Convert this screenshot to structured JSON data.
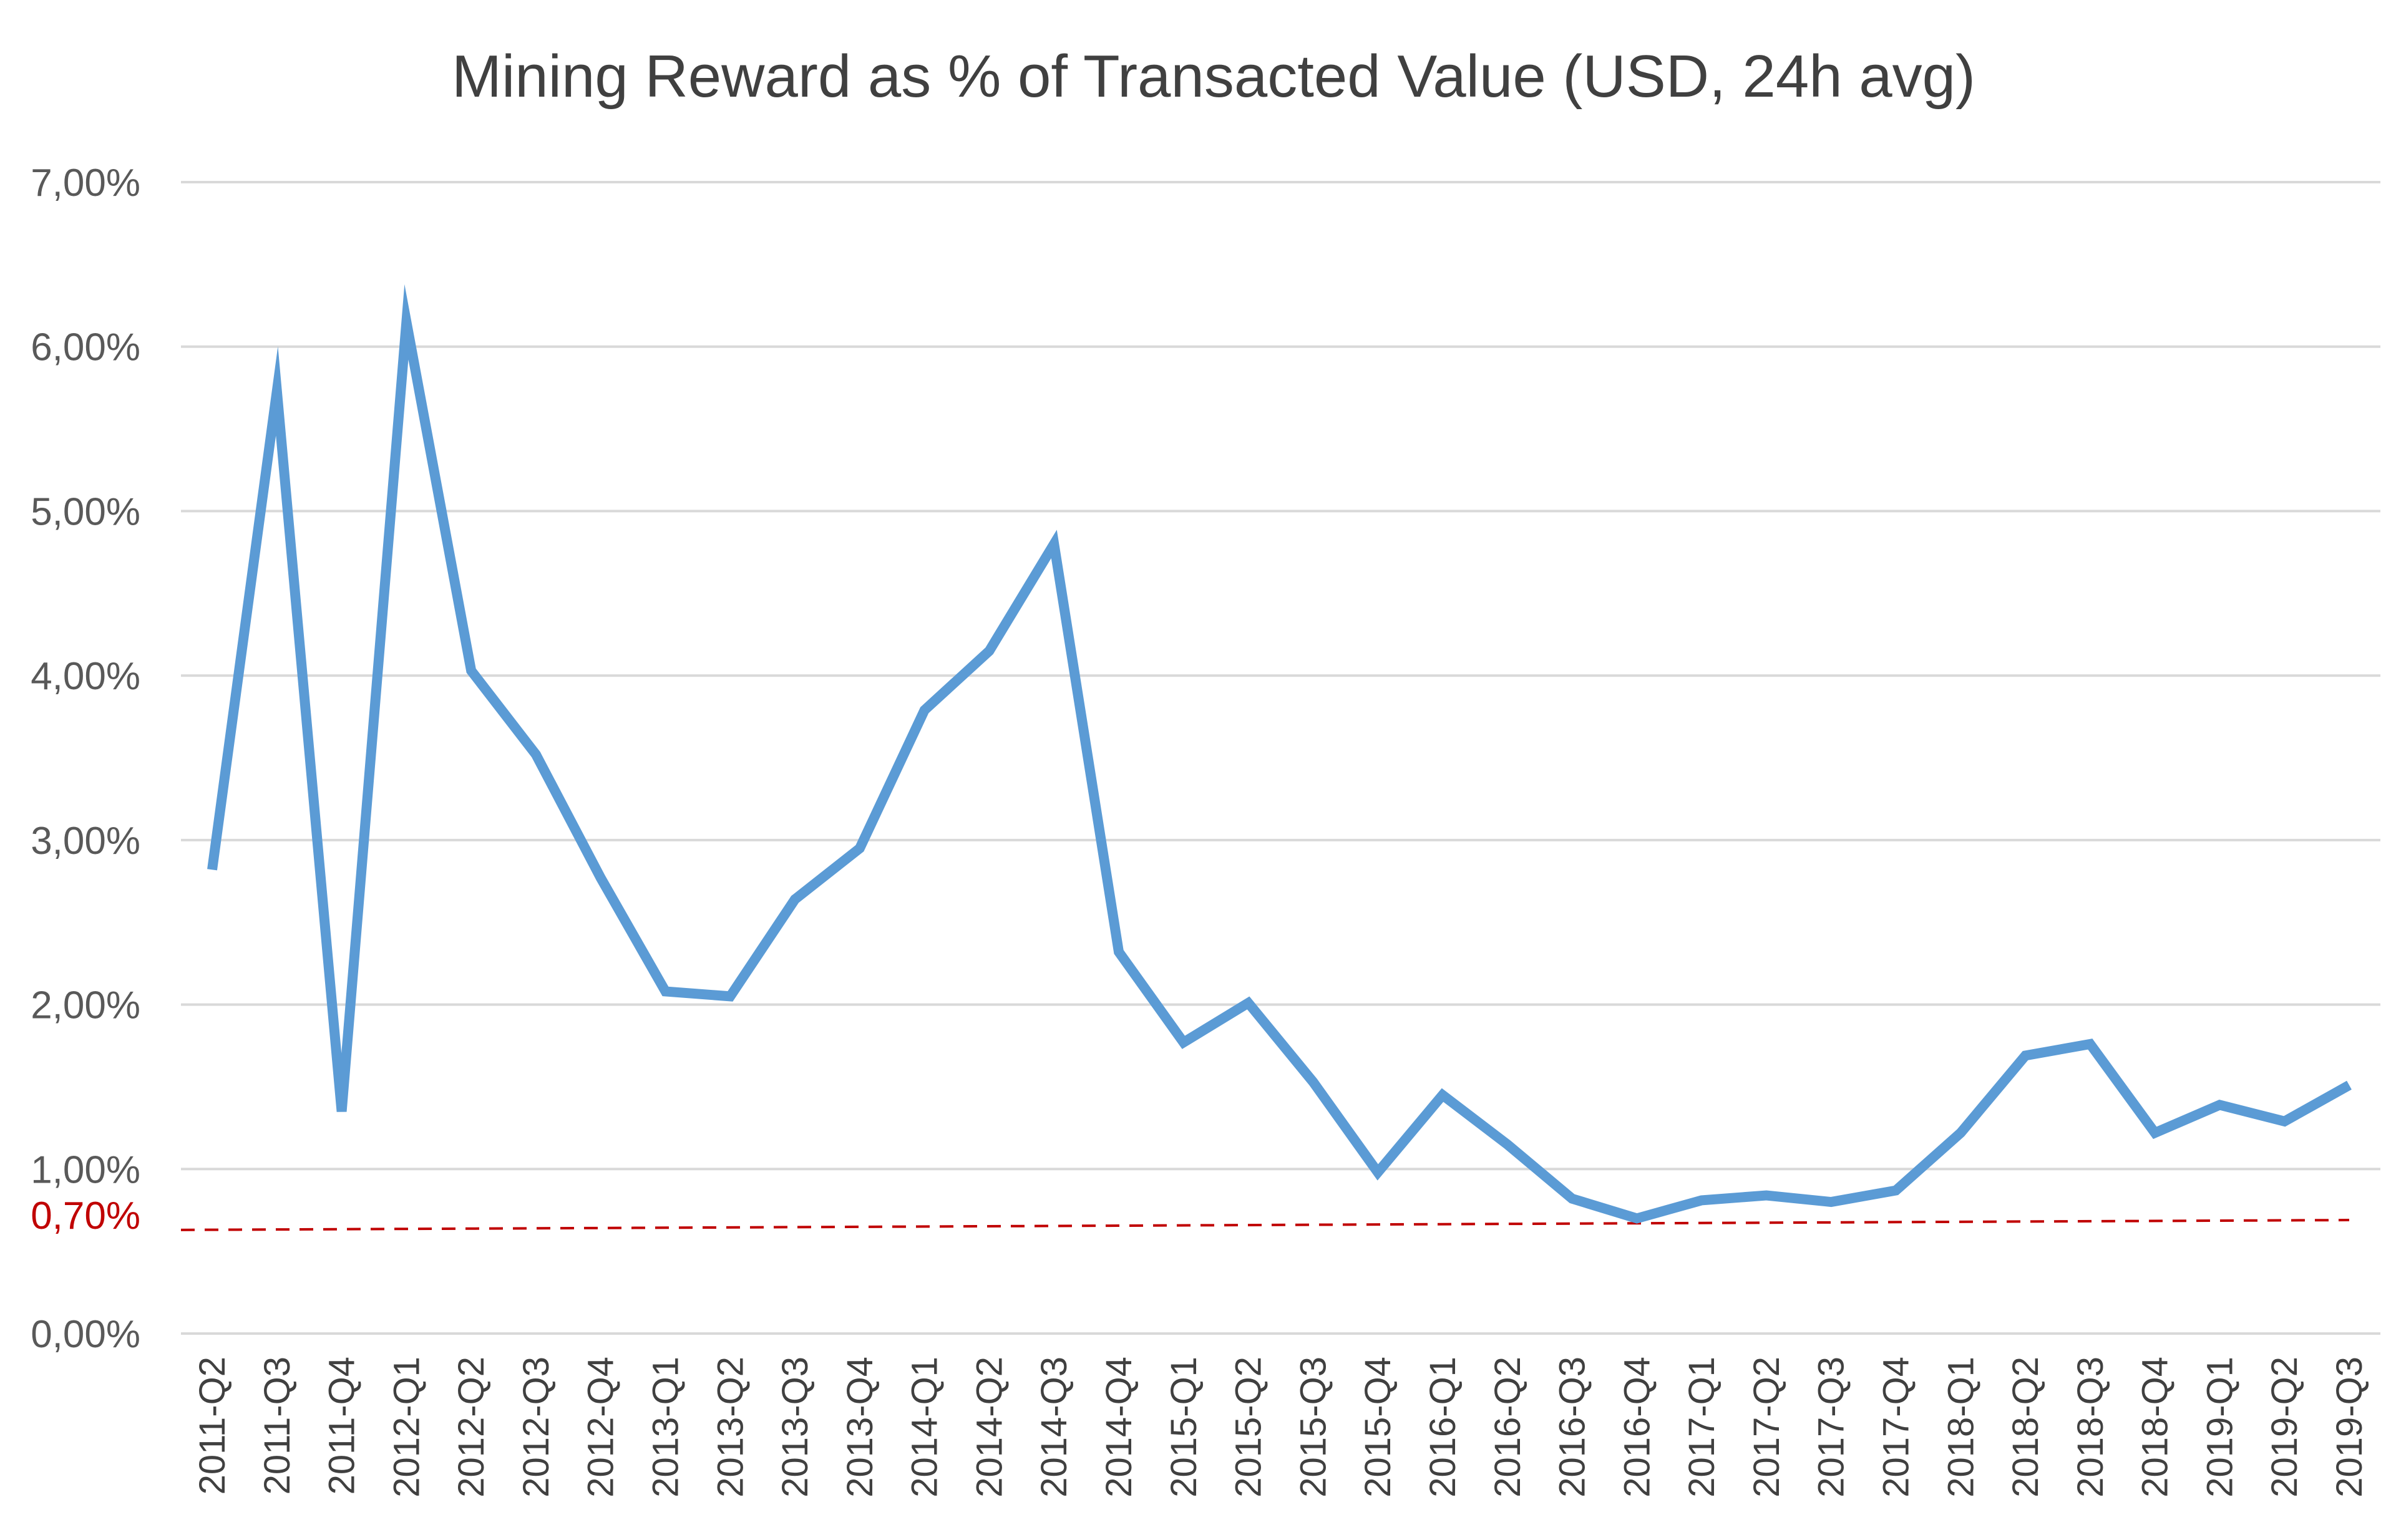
{
  "chart_data": {
    "type": "line",
    "title": "Mining Reward as % of Transacted Value (USD, 24h avg)",
    "xlabel": "",
    "ylabel": "",
    "ylim": [
      0,
      7
    ],
    "y_tick_labels": [
      "0,00%",
      "1,00%",
      "2,00%",
      "3,00%",
      "4,00%",
      "5,00%",
      "6,00%",
      "7,00%"
    ],
    "y_tick_values": [
      0,
      1,
      2,
      3,
      4,
      5,
      6,
      7
    ],
    "categories": [
      "2011-Q2",
      "2011-Q3",
      "2011-Q4",
      "2012-Q1",
      "2012-Q2",
      "2012-Q3",
      "2012-Q4",
      "2013-Q1",
      "2013-Q2",
      "2013-Q3",
      "2013-Q4",
      "2014-Q1",
      "2014-Q2",
      "2014-Q3",
      "2014-Q4",
      "2015-Q1",
      "2015-Q2",
      "2015-Q3",
      "2015-Q4",
      "2016-Q1",
      "2016-Q2",
      "2016-Q3",
      "2016-Q4",
      "2017-Q1",
      "2017-Q2",
      "2017-Q3",
      "2017-Q4",
      "2018-Q1",
      "2018-Q2",
      "2018-Q3",
      "2018-Q4",
      "2019-Q1",
      "2019-Q2",
      "2019-Q3"
    ],
    "series": [
      {
        "values": [
          2.82,
          5.73,
          1.35,
          6.15,
          4.03,
          3.52,
          2.77,
          2.08,
          2.05,
          2.64,
          2.95,
          3.79,
          4.15,
          4.8,
          2.32,
          1.77,
          2.01,
          1.53,
          0.98,
          1.45,
          1.15,
          0.82,
          0.7,
          0.81,
          0.84,
          0.8,
          0.87,
          1.22,
          1.69,
          1.76,
          1.22,
          1.39,
          1.29,
          1.51
        ],
        "color": "#5b9bd5"
      }
    ],
    "reference_line": {
      "label": "0,70%",
      "y_start": 0.63,
      "y_end": 0.69,
      "style": "dashed",
      "color": "#c00000"
    },
    "grid": true,
    "gridline_color": "#d9d9d9",
    "legend": "none"
  }
}
